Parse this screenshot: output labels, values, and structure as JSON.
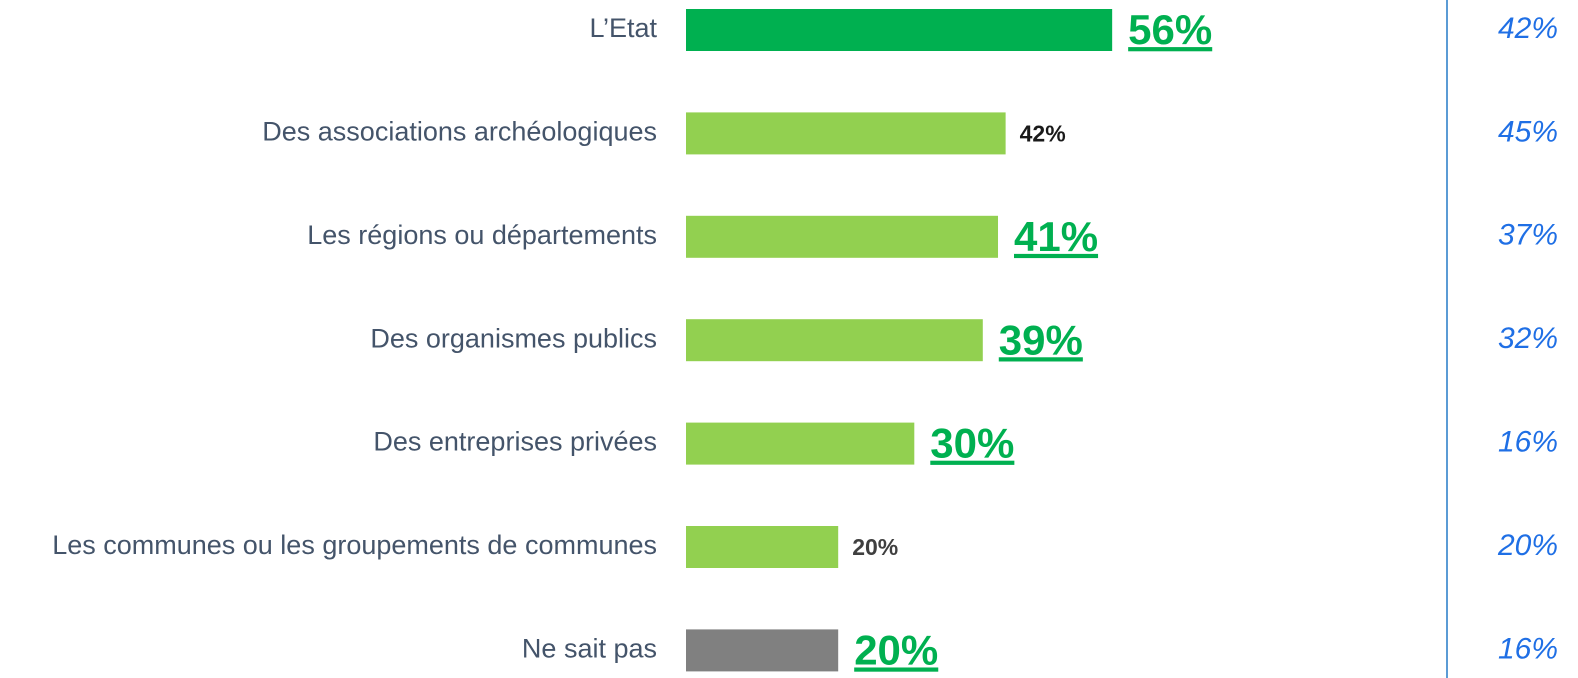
{
  "chart_data": {
    "type": "bar",
    "orientation": "horizontal",
    "categories": [
      "L’Etat",
      "Des associations archéologiques",
      "Les régions ou départements",
      "Des organismes publics",
      "Des entreprises privées",
      "Les communes ou les groupements de communes",
      "Ne sait pas"
    ],
    "values": [
      56,
      42,
      41,
      39,
      30,
      20,
      20
    ],
    "value_labels": [
      "56%",
      "42%",
      "41%",
      "39%",
      "30%",
      "20%",
      "20%"
    ],
    "highlight": [
      true,
      false,
      true,
      true,
      true,
      false,
      true
    ],
    "colors": [
      "#00b050",
      "#92d050",
      "#92d050",
      "#92d050",
      "#92d050",
      "#92d050",
      "#808080"
    ],
    "xlim": [
      0,
      100
    ],
    "comparison_values": [
      42,
      45,
      37,
      32,
      16,
      20,
      16
    ],
    "comparison_labels": [
      "42%",
      "45%",
      "37%",
      "32%",
      "16%",
      "20%",
      "16%"
    ],
    "comparison_color": "#1f6fe5"
  }
}
